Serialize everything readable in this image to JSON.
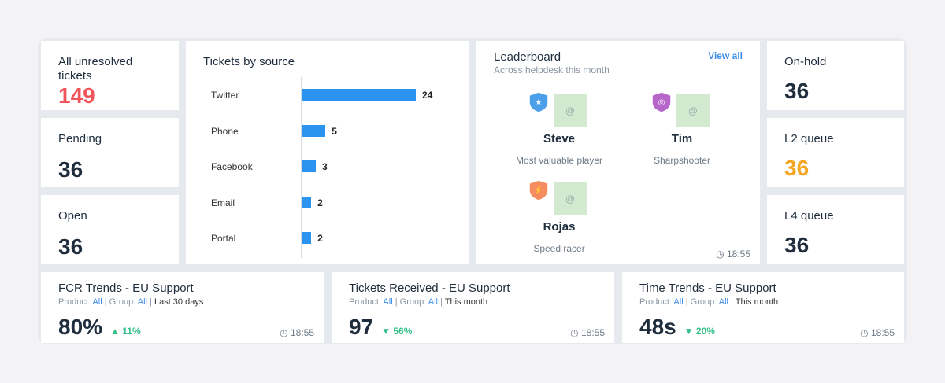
{
  "stats_left": [
    {
      "label": "All unresolved tickets",
      "value": "149",
      "color": "#f2545b"
    },
    {
      "label": "Pending",
      "value": "36",
      "color": "#1f2d3d"
    },
    {
      "label": "Open",
      "value": "36",
      "color": "#1f2d3d"
    }
  ],
  "stats_right": [
    {
      "label": "On-hold",
      "value": "36",
      "color": "#1f2d3d"
    },
    {
      "label": "L2 queue",
      "value": "36",
      "color": "#f5a623"
    },
    {
      "label": "L4 queue",
      "value": "36",
      "color": "#1f2d3d"
    }
  ],
  "chart_data": {
    "type": "bar",
    "orientation": "horizontal",
    "title": "Tickets by source",
    "categories": [
      "Twitter",
      "Phone",
      "Facebook",
      "Email",
      "Portal"
    ],
    "values": [
      24,
      5,
      3,
      2,
      2
    ],
    "color": "#2b94f0"
  },
  "leaderboard": {
    "title": "Leaderboard",
    "subtitle": "Across helpdesk this month",
    "view_all": "View all",
    "time": "18:55",
    "players": [
      {
        "name": "Steve",
        "award": "Most valuable player",
        "badge_color": "#4a9fe8",
        "badge_icon": "★",
        "avatar_text": "@"
      },
      {
        "name": "Tim",
        "award": "Sharpshooter",
        "badge_color": "#b665c9",
        "badge_icon": "◎",
        "avatar_text": "@"
      },
      {
        "name": "Rojas",
        "award": "Speed racer",
        "badge_color": "#f58c5f",
        "badge_icon": "⚡",
        "avatar_text": "@"
      }
    ]
  },
  "trends": [
    {
      "title": "FCR Trends - EU Support",
      "product_label": "Product:",
      "product": "All",
      "group_label": "Group:",
      "group": "All",
      "period": "Last 30 days",
      "value": "80%",
      "delta": "▲ 11%",
      "time": "18:55"
    },
    {
      "title": "Tickets Received - EU Support",
      "product_label": "Product:",
      "product": "All",
      "group_label": "Group:",
      "group": "All",
      "period": "This month",
      "value": "97",
      "delta": "▼ 56%",
      "time": "18:55"
    },
    {
      "title": "Time Trends - EU Support",
      "product_label": "Product:",
      "product": "All",
      "group_label": "Group:",
      "group": "All",
      "period": "This month",
      "value": "48s",
      "delta": "▼ 20%",
      "time": "18:55"
    }
  ]
}
